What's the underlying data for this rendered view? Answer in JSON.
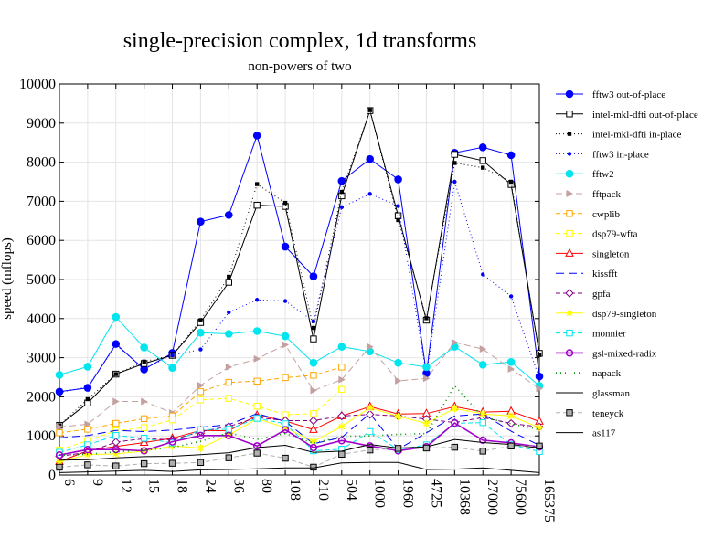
{
  "chart_data": {
    "type": "line",
    "title": "single-precision complex, 1d transforms",
    "subtitle": "non-powers of two",
    "xlabel": "",
    "ylabel": "speed (mflops)",
    "ylim": [
      0,
      10000
    ],
    "yticks": [
      0,
      1000,
      2000,
      3000,
      4000,
      5000,
      6000,
      7000,
      8000,
      9000,
      10000
    ],
    "grid": true,
    "legend_position": "right",
    "categories": [
      "6",
      "9",
      "12",
      "15",
      "18",
      "24",
      "36",
      "80",
      "108",
      "210",
      "504",
      "1000",
      "1960",
      "4725",
      "10368",
      "27000",
      "75600",
      "165375"
    ],
    "series": [
      {
        "name": "fftw3 out-of-place",
        "color": "#0000ff",
        "dash": "",
        "marker": "filled-circle",
        "values": [
          2130,
          2230,
          3350,
          2700,
          3120,
          6480,
          6650,
          8680,
          5840,
          5080,
          7520,
          8080,
          7560,
          2600,
          8240,
          8380,
          8180,
          2520
        ]
      },
      {
        "name": "intel-mkl-dfti out-of-place",
        "color": "#000000",
        "dash": "",
        "marker": "open-square",
        "values": [
          1270,
          1840,
          2580,
          2850,
          3060,
          3900,
          4930,
          6900,
          6870,
          3480,
          7140,
          9320,
          6630,
          3960,
          8200,
          8040,
          7430,
          3110
        ]
      },
      {
        "name": "intel-mkl-dfti in-place",
        "color": "#000000",
        "dash": "1,3",
        "marker": "small-filled-square",
        "values": [
          1270,
          1940,
          2580,
          2900,
          3060,
          3960,
          5070,
          7440,
          6960,
          3760,
          7240,
          9330,
          6520,
          4010,
          7980,
          7860,
          7500,
          3070
        ]
      },
      {
        "name": "fftw3 in-place",
        "color": "#0000ff",
        "dash": "1,3",
        "marker": "small-filled-circle",
        "values": [
          2110,
          2250,
          3320,
          2720,
          3060,
          3210,
          4160,
          4480,
          4450,
          3930,
          6850,
          7190,
          6880,
          2560,
          7500,
          5130,
          4570,
          2470
        ]
      },
      {
        "name": "fftw2",
        "color": "#00e5ee",
        "dash": "",
        "marker": "filled-circle",
        "values": [
          2560,
          2770,
          4040,
          3260,
          2740,
          3640,
          3610,
          3680,
          3550,
          2870,
          3280,
          3160,
          2870,
          2760,
          3280,
          2820,
          2890,
          2280
        ]
      },
      {
        "name": "fftpack",
        "color": "#c4a0a0",
        "dash": "7,4",
        "marker": "filled-triangle-right",
        "values": [
          1230,
          1300,
          1880,
          1880,
          1590,
          2290,
          2760,
          2970,
          3330,
          2160,
          2440,
          3280,
          2410,
          2470,
          3390,
          3220,
          2710,
          2210
        ]
      },
      {
        "name": "cwplib",
        "color": "#ffa500",
        "dash": "5,3",
        "marker": "open-square",
        "values": [
          1080,
          1170,
          1320,
          1440,
          1510,
          2130,
          2370,
          2400,
          2490,
          2550,
          2760,
          null,
          null,
          null,
          null,
          null,
          null,
          null
        ]
      },
      {
        "name": "dsp79-wfta",
        "color": "#ffff00",
        "dash": "5,3",
        "marker": "open-square",
        "values": [
          640,
          880,
          1130,
          1210,
          1410,
          1920,
          1960,
          1760,
          1540,
          1570,
          2190,
          null,
          null,
          null,
          null,
          null,
          null,
          null
        ]
      },
      {
        "name": "singleton",
        "color": "#ff0000",
        "dash": "",
        "marker": "open-triangle",
        "values": [
          340,
          620,
          730,
          830,
          940,
          1140,
          1130,
          1530,
          1380,
          1160,
          1510,
          1750,
          1560,
          1570,
          1750,
          1610,
          1630,
          1370
        ]
      },
      {
        "name": "kissfft",
        "color": "#0000ff",
        "dash": "9,5",
        "marker": "",
        "values": [
          950,
          1010,
          1140,
          1110,
          1150,
          1220,
          1290,
          1570,
          1370,
          800,
          960,
          1570,
          660,
          1080,
          1510,
          1560,
          1120,
          760
        ]
      },
      {
        "name": "gpfa",
        "color": "#800080",
        "dash": "5,3",
        "marker": "open-diamond",
        "values": [
          480,
          580,
          840,
          930,
          900,
          1110,
          1240,
          1470,
          1390,
          1390,
          1510,
          1550,
          1510,
          1430,
          1340,
          1470,
          1320,
          1230
        ]
      },
      {
        "name": "dsp79-singleton",
        "color": "#ffff00",
        "dash": "",
        "marker": "asterisk",
        "values": [
          340,
          520,
          540,
          610,
          740,
          690,
          1020,
          1440,
          1210,
          860,
          1240,
          1720,
          1500,
          1320,
          1700,
          1560,
          1510,
          1210
        ]
      },
      {
        "name": "monnier",
        "color": "#00e5ee",
        "dash": "5,3",
        "marker": "open-square",
        "values": [
          580,
          770,
          1010,
          940,
          820,
          1160,
          1170,
          1450,
          1310,
          620,
          660,
          1110,
          650,
          770,
          1320,
          1340,
          770,
          600
        ]
      },
      {
        "name": "gsl-mixed-radix",
        "color": "#a000c8",
        "dash": "",
        "marker": "open-circle",
        "values": [
          510,
          650,
          650,
          620,
          850,
          1010,
          1010,
          740,
          1160,
          700,
          880,
          740,
          620,
          720,
          1330,
          890,
          820,
          720
        ]
      },
      {
        "name": "napack",
        "color": "#009000",
        "dash": "1,4",
        "marker": "",
        "values": [
          510,
          530,
          590,
          630,
          700,
          860,
          1080,
          910,
          1060,
          810,
          990,
          1000,
          1040,
          1060,
          2280,
          1480,
          1310,
          1160
        ]
      },
      {
        "name": "glassman",
        "color": "#000000",
        "dash": "",
        "marker": "",
        "values": [
          380,
          390,
          440,
          470,
          480,
          520,
          570,
          700,
          760,
          580,
          610,
          780,
          690,
          720,
          910,
          830,
          780,
          690
        ]
      },
      {
        "name": "teneyck",
        "color": "#b0b0b0",
        "dash": "5,3",
        "marker": "open-square-black",
        "values": [
          200,
          260,
          230,
          290,
          300,
          320,
          440,
          560,
          430,
          200,
          530,
          640,
          680,
          690,
          710,
          610,
          740,
          740
        ]
      },
      {
        "name": "as117",
        "color": "#000000",
        "dash": "",
        "marker": "",
        "values": [
          60,
          80,
          100,
          120,
          90,
          130,
          140,
          160,
          180,
          180,
          310,
          320,
          320,
          140,
          150,
          180,
          120,
          60
        ]
      }
    ]
  }
}
